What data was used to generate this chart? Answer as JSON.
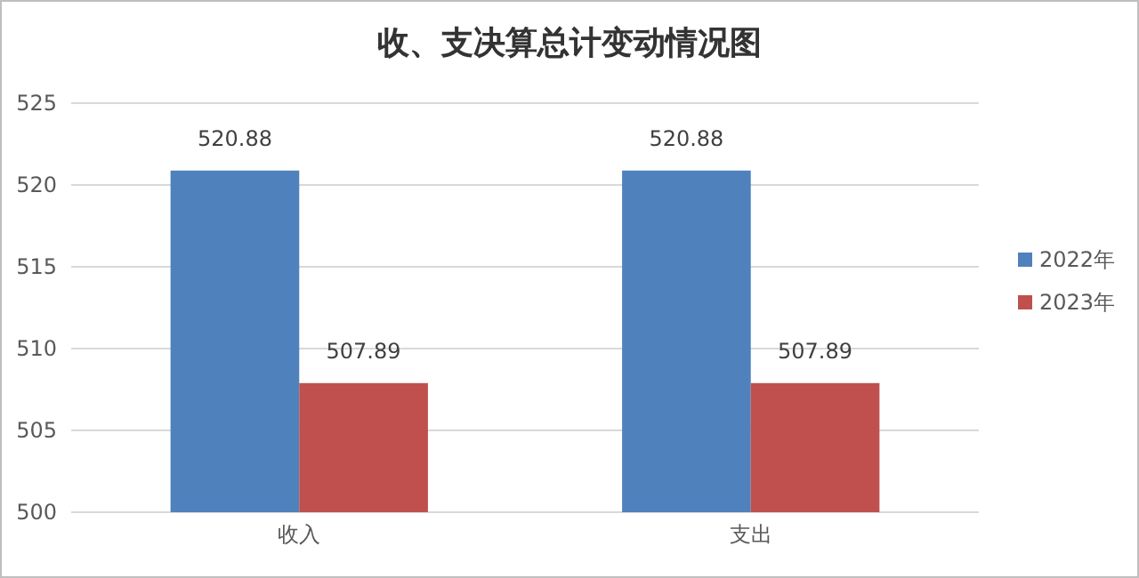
{
  "chart_data": {
    "type": "bar",
    "title": "收、支决算总计变动情况图",
    "categories": [
      "收入",
      "支出"
    ],
    "series": [
      {
        "name": "2022年",
        "color": "#4f81bd",
        "values": [
          520.88,
          520.88
        ]
      },
      {
        "name": "2023年",
        "color": "#c0504d",
        "values": [
          507.89,
          507.89
        ]
      }
    ],
    "ylim": [
      500,
      525
    ],
    "yticks": [
      500,
      505,
      510,
      515,
      520,
      525
    ],
    "grid": "y",
    "legend": "right",
    "data_labels": true
  }
}
